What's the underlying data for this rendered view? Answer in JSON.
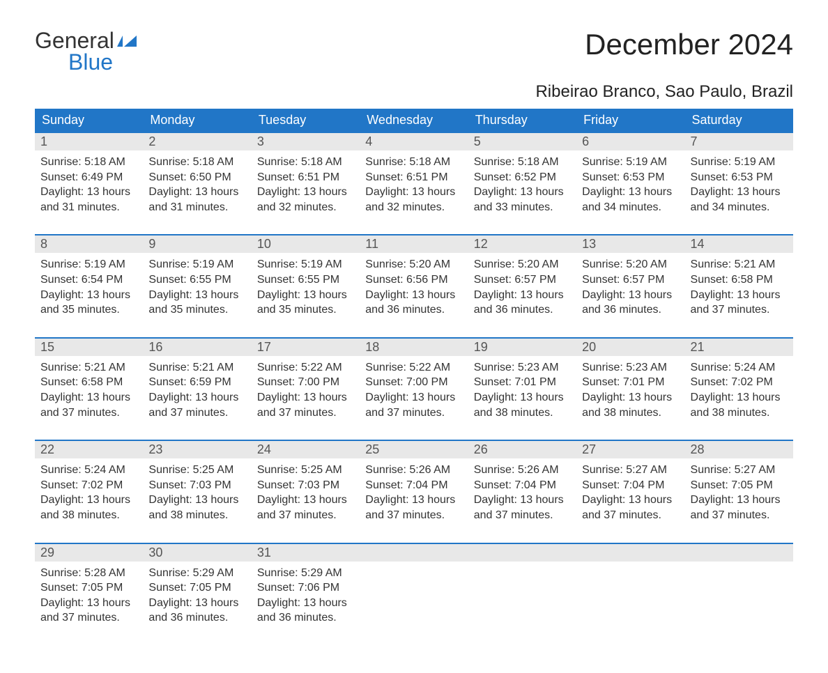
{
  "logo": {
    "word1": "General",
    "word2": "Blue",
    "shape_color": "#2176c7"
  },
  "title": "December 2024",
  "location": "Ribeirao Branco, Sao Paulo, Brazil",
  "colors": {
    "header_bg": "#2176c7",
    "header_text": "#ffffff",
    "band_bg": "#e8e8e8",
    "text": "#333333",
    "row_border": "#2176c7"
  },
  "day_headers": [
    "Sunday",
    "Monday",
    "Tuesday",
    "Wednesday",
    "Thursday",
    "Friday",
    "Saturday"
  ],
  "weeks": [
    [
      {
        "n": "1",
        "sunrise": "Sunrise: 5:18 AM",
        "sunset": "Sunset: 6:49 PM",
        "d1": "Daylight: 13 hours",
        "d2": "and 31 minutes."
      },
      {
        "n": "2",
        "sunrise": "Sunrise: 5:18 AM",
        "sunset": "Sunset: 6:50 PM",
        "d1": "Daylight: 13 hours",
        "d2": "and 31 minutes."
      },
      {
        "n": "3",
        "sunrise": "Sunrise: 5:18 AM",
        "sunset": "Sunset: 6:51 PM",
        "d1": "Daylight: 13 hours",
        "d2": "and 32 minutes."
      },
      {
        "n": "4",
        "sunrise": "Sunrise: 5:18 AM",
        "sunset": "Sunset: 6:51 PM",
        "d1": "Daylight: 13 hours",
        "d2": "and 32 minutes."
      },
      {
        "n": "5",
        "sunrise": "Sunrise: 5:18 AM",
        "sunset": "Sunset: 6:52 PM",
        "d1": "Daylight: 13 hours",
        "d2": "and 33 minutes."
      },
      {
        "n": "6",
        "sunrise": "Sunrise: 5:19 AM",
        "sunset": "Sunset: 6:53 PM",
        "d1": "Daylight: 13 hours",
        "d2": "and 34 minutes."
      },
      {
        "n": "7",
        "sunrise": "Sunrise: 5:19 AM",
        "sunset": "Sunset: 6:53 PM",
        "d1": "Daylight: 13 hours",
        "d2": "and 34 minutes."
      }
    ],
    [
      {
        "n": "8",
        "sunrise": "Sunrise: 5:19 AM",
        "sunset": "Sunset: 6:54 PM",
        "d1": "Daylight: 13 hours",
        "d2": "and 35 minutes."
      },
      {
        "n": "9",
        "sunrise": "Sunrise: 5:19 AM",
        "sunset": "Sunset: 6:55 PM",
        "d1": "Daylight: 13 hours",
        "d2": "and 35 minutes."
      },
      {
        "n": "10",
        "sunrise": "Sunrise: 5:19 AM",
        "sunset": "Sunset: 6:55 PM",
        "d1": "Daylight: 13 hours",
        "d2": "and 35 minutes."
      },
      {
        "n": "11",
        "sunrise": "Sunrise: 5:20 AM",
        "sunset": "Sunset: 6:56 PM",
        "d1": "Daylight: 13 hours",
        "d2": "and 36 minutes."
      },
      {
        "n": "12",
        "sunrise": "Sunrise: 5:20 AM",
        "sunset": "Sunset: 6:57 PM",
        "d1": "Daylight: 13 hours",
        "d2": "and 36 minutes."
      },
      {
        "n": "13",
        "sunrise": "Sunrise: 5:20 AM",
        "sunset": "Sunset: 6:57 PM",
        "d1": "Daylight: 13 hours",
        "d2": "and 36 minutes."
      },
      {
        "n": "14",
        "sunrise": "Sunrise: 5:21 AM",
        "sunset": "Sunset: 6:58 PM",
        "d1": "Daylight: 13 hours",
        "d2": "and 37 minutes."
      }
    ],
    [
      {
        "n": "15",
        "sunrise": "Sunrise: 5:21 AM",
        "sunset": "Sunset: 6:58 PM",
        "d1": "Daylight: 13 hours",
        "d2": "and 37 minutes."
      },
      {
        "n": "16",
        "sunrise": "Sunrise: 5:21 AM",
        "sunset": "Sunset: 6:59 PM",
        "d1": "Daylight: 13 hours",
        "d2": "and 37 minutes."
      },
      {
        "n": "17",
        "sunrise": "Sunrise: 5:22 AM",
        "sunset": "Sunset: 7:00 PM",
        "d1": "Daylight: 13 hours",
        "d2": "and 37 minutes."
      },
      {
        "n": "18",
        "sunrise": "Sunrise: 5:22 AM",
        "sunset": "Sunset: 7:00 PM",
        "d1": "Daylight: 13 hours",
        "d2": "and 37 minutes."
      },
      {
        "n": "19",
        "sunrise": "Sunrise: 5:23 AM",
        "sunset": "Sunset: 7:01 PM",
        "d1": "Daylight: 13 hours",
        "d2": "and 38 minutes."
      },
      {
        "n": "20",
        "sunrise": "Sunrise: 5:23 AM",
        "sunset": "Sunset: 7:01 PM",
        "d1": "Daylight: 13 hours",
        "d2": "and 38 minutes."
      },
      {
        "n": "21",
        "sunrise": "Sunrise: 5:24 AM",
        "sunset": "Sunset: 7:02 PM",
        "d1": "Daylight: 13 hours",
        "d2": "and 38 minutes."
      }
    ],
    [
      {
        "n": "22",
        "sunrise": "Sunrise: 5:24 AM",
        "sunset": "Sunset: 7:02 PM",
        "d1": "Daylight: 13 hours",
        "d2": "and 38 minutes."
      },
      {
        "n": "23",
        "sunrise": "Sunrise: 5:25 AM",
        "sunset": "Sunset: 7:03 PM",
        "d1": "Daylight: 13 hours",
        "d2": "and 38 minutes."
      },
      {
        "n": "24",
        "sunrise": "Sunrise: 5:25 AM",
        "sunset": "Sunset: 7:03 PM",
        "d1": "Daylight: 13 hours",
        "d2": "and 37 minutes."
      },
      {
        "n": "25",
        "sunrise": "Sunrise: 5:26 AM",
        "sunset": "Sunset: 7:04 PM",
        "d1": "Daylight: 13 hours",
        "d2": "and 37 minutes."
      },
      {
        "n": "26",
        "sunrise": "Sunrise: 5:26 AM",
        "sunset": "Sunset: 7:04 PM",
        "d1": "Daylight: 13 hours",
        "d2": "and 37 minutes."
      },
      {
        "n": "27",
        "sunrise": "Sunrise: 5:27 AM",
        "sunset": "Sunset: 7:04 PM",
        "d1": "Daylight: 13 hours",
        "d2": "and 37 minutes."
      },
      {
        "n": "28",
        "sunrise": "Sunrise: 5:27 AM",
        "sunset": "Sunset: 7:05 PM",
        "d1": "Daylight: 13 hours",
        "d2": "and 37 minutes."
      }
    ],
    [
      {
        "n": "29",
        "sunrise": "Sunrise: 5:28 AM",
        "sunset": "Sunset: 7:05 PM",
        "d1": "Daylight: 13 hours",
        "d2": "and 37 minutes."
      },
      {
        "n": "30",
        "sunrise": "Sunrise: 5:29 AM",
        "sunset": "Sunset: 7:05 PM",
        "d1": "Daylight: 13 hours",
        "d2": "and 36 minutes."
      },
      {
        "n": "31",
        "sunrise": "Sunrise: 5:29 AM",
        "sunset": "Sunset: 7:06 PM",
        "d1": "Daylight: 13 hours",
        "d2": "and 36 minutes."
      },
      null,
      null,
      null,
      null
    ]
  ]
}
